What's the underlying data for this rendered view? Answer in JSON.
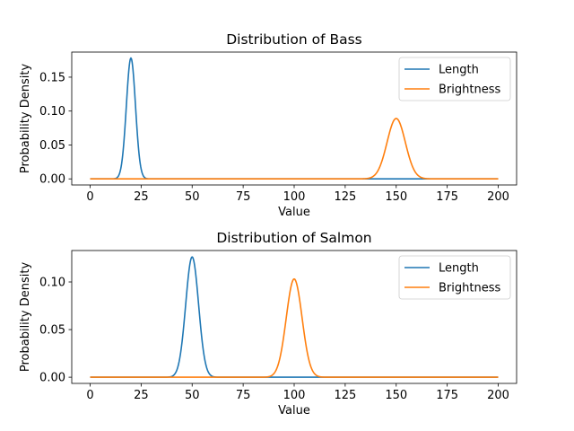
{
  "chart_data": [
    {
      "type": "line",
      "title": "Distribution of Bass",
      "xlabel": "Value",
      "ylabel": "Probability Density",
      "xlim": [
        -9,
        209
      ],
      "ylim": [
        -0.009,
        0.187
      ],
      "xticks": [
        0,
        25,
        50,
        75,
        100,
        125,
        150,
        175,
        200
      ],
      "xtick_labels": [
        "0",
        "25",
        "50",
        "75",
        "100",
        "125",
        "150",
        "175",
        "200"
      ],
      "yticks": [
        0.0,
        0.05,
        0.1,
        0.15
      ],
      "ytick_labels": [
        "0.00",
        "0.05",
        "0.10",
        "0.15"
      ],
      "grid": false,
      "legend_position": "top-right",
      "series": [
        {
          "name": "Length",
          "distribution": "normal",
          "mean": 20,
          "std": 2.24,
          "color": "#1f77b4"
        },
        {
          "name": "Brightness",
          "distribution": "normal",
          "mean": 150,
          "std": 4.48,
          "color": "#ff7f0e"
        }
      ]
    },
    {
      "type": "line",
      "title": "Distribution of Salmon",
      "xlabel": "Value",
      "ylabel": "Probability Density",
      "xlim": [
        -9,
        209
      ],
      "ylim": [
        -0.0065,
        0.133
      ],
      "xticks": [
        0,
        25,
        50,
        75,
        100,
        125,
        150,
        175,
        200
      ],
      "xtick_labels": [
        "0",
        "25",
        "50",
        "75",
        "100",
        "125",
        "150",
        "175",
        "200"
      ],
      "yticks": [
        0.0,
        0.05,
        0.1
      ],
      "ytick_labels": [
        "0.00",
        "0.05",
        "0.10"
      ],
      "grid": false,
      "legend_position": "top-right",
      "series": [
        {
          "name": "Length",
          "distribution": "normal",
          "mean": 50,
          "std": 3.16,
          "color": "#1f77b4"
        },
        {
          "name": "Brightness",
          "distribution": "normal",
          "mean": 100,
          "std": 3.87,
          "color": "#ff7f0e"
        }
      ]
    }
  ]
}
